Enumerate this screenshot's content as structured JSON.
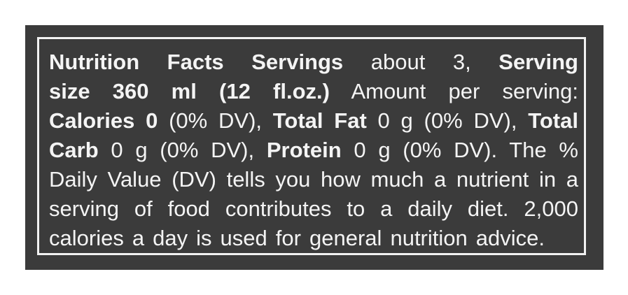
{
  "colors": {
    "panel": "#3b3b3b",
    "text": "#f4f4f4",
    "frame": "#f2f2f2"
  },
  "label": {
    "lines": [
      [
        {
          "t": "Nutrition Facts Servings",
          "b": true
        },
        {
          "t": " about 3, ",
          "b": false
        },
        {
          "t": "Serving",
          "b": true
        }
      ],
      [
        {
          "t": "size 360 ml (12 fl.oz.)",
          "b": true
        },
        {
          "t": " Amount per serving:",
          "b": false
        }
      ],
      [
        {
          "t": "Calories 0",
          "b": true
        },
        {
          "t": " (0% DV), ",
          "b": false
        },
        {
          "t": "Total Fat",
          "b": true
        },
        {
          "t": " 0 g (0% DV), ",
          "b": false
        },
        {
          "t": "Total",
          "b": true
        }
      ],
      [
        {
          "t": "Carb",
          "b": true
        },
        {
          "t": " 0 g (0% DV), ",
          "b": false
        },
        {
          "t": "Protein",
          "b": true
        },
        {
          "t": " 0 g (0% DV). The %",
          "b": false
        }
      ],
      [
        {
          "t": "Daily Value (DV) tells you how much a nutrient in a",
          "b": false
        }
      ],
      [
        {
          "t": "serving of food contributes to a daily diet. 2,000",
          "b": false
        }
      ],
      [
        {
          "t": "calories a day is used for general nutrition advice.",
          "b": false
        }
      ]
    ]
  }
}
